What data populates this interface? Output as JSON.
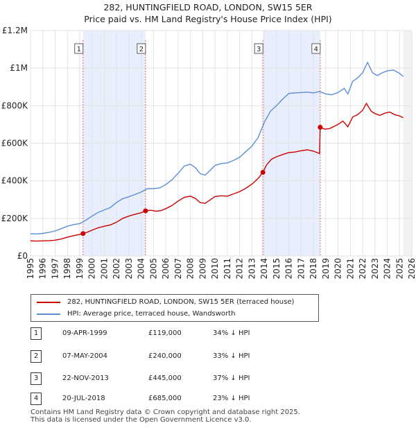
{
  "chart_data": {
    "type": "line",
    "title": "282, HUNTINGFIELD ROAD, LONDON, SW15 5ER",
    "subtitle": "Price paid vs. HM Land Registry's House Price Index (HPI)",
    "xlim": [
      1995,
      2026
    ],
    "ylim": [
      0,
      1200000
    ],
    "y_ticks": [
      0,
      200000,
      400000,
      600000,
      800000,
      1000000,
      1200000
    ],
    "y_tick_labels": [
      "£0",
      "£200K",
      "£400K",
      "£600K",
      "£800K",
      "£1M",
      "£1.2M"
    ],
    "x_ticks": [
      "1995",
      "1996",
      "1997",
      "1998",
      "1999",
      "2000",
      "2001",
      "2002",
      "2003",
      "2004",
      "2005",
      "2006",
      "2007",
      "2008",
      "2009",
      "2010",
      "2011",
      "2012",
      "2013",
      "2014",
      "2015",
      "2016",
      "2017",
      "2018",
      "2019",
      "2020",
      "2021",
      "2022",
      "2023",
      "2024",
      "2025",
      "2026"
    ],
    "grid": true,
    "series": [
      {
        "name": "282, HUNTINGFIELD ROAD, LONDON, SW15 5ER (terraced house)",
        "color": "#cc0000",
        "points": [
          [
            1995.0,
            80000
          ],
          [
            1995.5,
            79000
          ],
          [
            1996.0,
            80000
          ],
          [
            1996.5,
            81000
          ],
          [
            1997.0,
            84000
          ],
          [
            1997.5,
            90000
          ],
          [
            1998.0,
            100000
          ],
          [
            1998.5,
            108000
          ],
          [
            1999.0,
            115000
          ],
          [
            1999.27,
            119000
          ],
          [
            1999.6,
            126000
          ],
          [
            2000.0,
            137000
          ],
          [
            2000.5,
            150000
          ],
          [
            2001.0,
            158000
          ],
          [
            2001.5,
            165000
          ],
          [
            2002.0,
            180000
          ],
          [
            2002.5,
            200000
          ],
          [
            2003.0,
            212000
          ],
          [
            2003.5,
            222000
          ],
          [
            2004.0,
            230000
          ],
          [
            2004.35,
            240000
          ],
          [
            2004.8,
            243000
          ],
          [
            2005.2,
            238000
          ],
          [
            2005.6,
            241000
          ],
          [
            2006.0,
            252000
          ],
          [
            2006.5,
            268000
          ],
          [
            2007.0,
            292000
          ],
          [
            2007.5,
            312000
          ],
          [
            2008.0,
            318000
          ],
          [
            2008.4,
            306000
          ],
          [
            2008.8,
            284000
          ],
          [
            2009.2,
            280000
          ],
          [
            2009.6,
            298000
          ],
          [
            2010.0,
            316000
          ],
          [
            2010.5,
            320000
          ],
          [
            2011.0,
            318000
          ],
          [
            2011.5,
            330000
          ],
          [
            2012.0,
            342000
          ],
          [
            2012.5,
            360000
          ],
          [
            2013.0,
            382000
          ],
          [
            2013.5,
            412000
          ],
          [
            2013.89,
            445000
          ],
          [
            2014.2,
            485000
          ],
          [
            2014.6,
            515000
          ],
          [
            2015.0,
            528000
          ],
          [
            2015.5,
            540000
          ],
          [
            2016.0,
            550000
          ],
          [
            2016.5,
            553000
          ],
          [
            2017.0,
            560000
          ],
          [
            2017.5,
            565000
          ],
          [
            2018.0,
            558000
          ],
          [
            2018.5,
            545000
          ],
          [
            2018.55,
            685000
          ],
          [
            2018.9,
            675000
          ],
          [
            2019.3,
            678000
          ],
          [
            2019.7,
            690000
          ],
          [
            2020.0,
            700000
          ],
          [
            2020.4,
            718000
          ],
          [
            2020.8,
            688000
          ],
          [
            2021.2,
            740000
          ],
          [
            2021.6,
            752000
          ],
          [
            2022.0,
            775000
          ],
          [
            2022.3,
            812000
          ],
          [
            2022.7,
            770000
          ],
          [
            2023.0,
            758000
          ],
          [
            2023.4,
            748000
          ],
          [
            2023.8,
            760000
          ],
          [
            2024.2,
            766000
          ],
          [
            2024.6,
            752000
          ],
          [
            2025.0,
            745000
          ],
          [
            2025.3,
            736000
          ]
        ]
      },
      {
        "name": "HPI: Average price, terraced house, Wandsworth",
        "color": "#5b8ed6",
        "points": [
          [
            1995.0,
            118000
          ],
          [
            1995.5,
            117000
          ],
          [
            1996.0,
            120000
          ],
          [
            1996.5,
            125000
          ],
          [
            1997.0,
            133000
          ],
          [
            1997.5,
            145000
          ],
          [
            1998.0,
            158000
          ],
          [
            1998.5,
            167000
          ],
          [
            1999.0,
            172000
          ],
          [
            1999.5,
            190000
          ],
          [
            2000.0,
            212000
          ],
          [
            2000.5,
            232000
          ],
          [
            2001.0,
            245000
          ],
          [
            2001.5,
            258000
          ],
          [
            2002.0,
            285000
          ],
          [
            2002.5,
            305000
          ],
          [
            2003.0,
            315000
          ],
          [
            2003.5,
            327000
          ],
          [
            2004.0,
            340000
          ],
          [
            2004.5,
            358000
          ],
          [
            2005.0,
            358000
          ],
          [
            2005.5,
            362000
          ],
          [
            2006.0,
            380000
          ],
          [
            2006.5,
            405000
          ],
          [
            2007.0,
            440000
          ],
          [
            2007.5,
            478000
          ],
          [
            2008.0,
            488000
          ],
          [
            2008.4,
            470000
          ],
          [
            2008.8,
            438000
          ],
          [
            2009.2,
            430000
          ],
          [
            2009.6,
            455000
          ],
          [
            2010.0,
            482000
          ],
          [
            2010.5,
            492000
          ],
          [
            2011.0,
            495000
          ],
          [
            2011.5,
            508000
          ],
          [
            2012.0,
            525000
          ],
          [
            2012.5,
            555000
          ],
          [
            2013.0,
            585000
          ],
          [
            2013.5,
            630000
          ],
          [
            2014.0,
            710000
          ],
          [
            2014.5,
            770000
          ],
          [
            2015.0,
            800000
          ],
          [
            2015.5,
            835000
          ],
          [
            2016.0,
            865000
          ],
          [
            2016.5,
            868000
          ],
          [
            2017.0,
            870000
          ],
          [
            2017.5,
            872000
          ],
          [
            2018.0,
            868000
          ],
          [
            2018.5,
            875000
          ],
          [
            2019.0,
            862000
          ],
          [
            2019.5,
            858000
          ],
          [
            2020.0,
            870000
          ],
          [
            2020.5,
            892000
          ],
          [
            2020.8,
            862000
          ],
          [
            2021.2,
            930000
          ],
          [
            2021.6,
            948000
          ],
          [
            2022.0,
            975000
          ],
          [
            2022.4,
            1030000
          ],
          [
            2022.8,
            975000
          ],
          [
            2023.2,
            960000
          ],
          [
            2023.6,
            975000
          ],
          [
            2024.0,
            985000
          ],
          [
            2024.5,
            990000
          ],
          [
            2025.0,
            972000
          ],
          [
            2025.3,
            955000
          ]
        ]
      }
    ],
    "sales": [
      {
        "label": "1",
        "x": 1999.27,
        "y": 119000
      },
      {
        "label": "2",
        "x": 2004.35,
        "y": 240000
      },
      {
        "label": "3",
        "x": 2013.89,
        "y": 445000
      },
      {
        "label": "4",
        "x": 2018.55,
        "y": 685000
      }
    ],
    "shaded_ranges": [
      [
        1999.27,
        2004.35
      ],
      [
        2013.89,
        2018.55
      ]
    ]
  },
  "legend": {
    "property_label": "282, HUNTINGFIELD ROAD, LONDON, SW15 5ER (terraced house)",
    "hpi_label": "HPI: Average price, terraced house, Wandsworth",
    "property_color": "#cc0000",
    "hpi_color": "#5b8ed6"
  },
  "sales_table": [
    {
      "num": "1",
      "date": "09-APR-1999",
      "price": "£119,000",
      "hpi": "34% ↓ HPI"
    },
    {
      "num": "2",
      "date": "07-MAY-2004",
      "price": "£240,000",
      "hpi": "33% ↓ HPI"
    },
    {
      "num": "3",
      "date": "22-NOV-2013",
      "price": "£445,000",
      "hpi": "37% ↓ HPI"
    },
    {
      "num": "4",
      "date": "20-JUL-2018",
      "price": "£685,000",
      "hpi": "23% ↓ HPI"
    }
  ],
  "footer": {
    "line1": "Contains HM Land Registry data © Crown copyright and database right 2025.",
    "line2": "This data is licensed under the Open Government Licence v3.0."
  }
}
